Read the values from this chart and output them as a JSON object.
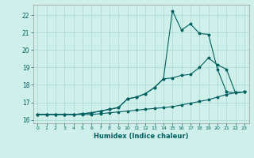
{
  "xlabel": "Humidex (Indice chaleur)",
  "bg_color": "#cff0ea",
  "grid_color": "#a8d8d0",
  "line_color": "#006060",
  "xlim": [
    -0.5,
    23.5
  ],
  "ylim": [
    15.8,
    22.6
  ],
  "yticks": [
    16,
    17,
    18,
    19,
    20,
    21,
    22
  ],
  "xticks": [
    0,
    1,
    2,
    3,
    4,
    5,
    6,
    7,
    8,
    9,
    10,
    11,
    12,
    13,
    14,
    15,
    16,
    17,
    18,
    19,
    20,
    21,
    22,
    23
  ],
  "series": [
    {
      "x": [
        0,
        1,
        2,
        3,
        4,
        5,
        6,
        7,
        8,
        9,
        10,
        11,
        12,
        13,
        14,
        15,
        16,
        17,
        18,
        19,
        20,
        21,
        22,
        23
      ],
      "y": [
        16.3,
        16.3,
        16.3,
        16.3,
        16.3,
        16.3,
        16.3,
        16.35,
        16.4,
        16.45,
        16.5,
        16.55,
        16.6,
        16.65,
        16.7,
        16.75,
        16.85,
        16.95,
        17.05,
        17.15,
        17.3,
        17.45,
        17.55,
        17.6
      ]
    },
    {
      "x": [
        0,
        1,
        2,
        3,
        4,
        5,
        6,
        7,
        8,
        9,
        10,
        11,
        12,
        13,
        14,
        15,
        16,
        17,
        18,
        19,
        20,
        21,
        22,
        23
      ],
      "y": [
        16.3,
        16.3,
        16.3,
        16.3,
        16.3,
        16.35,
        16.4,
        16.5,
        16.6,
        16.7,
        17.2,
        17.3,
        17.5,
        17.85,
        18.35,
        18.4,
        18.55,
        18.6,
        19.0,
        19.55,
        19.15,
        18.9,
        17.55,
        17.6
      ]
    },
    {
      "x": [
        0,
        1,
        2,
        3,
        4,
        5,
        6,
        7,
        8,
        9,
        10,
        11,
        12,
        13,
        14,
        15,
        16,
        17,
        18,
        19,
        20,
        21,
        22,
        23
      ],
      "y": [
        16.3,
        16.3,
        16.3,
        16.3,
        16.3,
        16.35,
        16.4,
        16.5,
        16.6,
        16.7,
        17.2,
        17.3,
        17.5,
        17.85,
        18.35,
        22.25,
        21.15,
        21.5,
        20.95,
        20.9,
        18.9,
        17.6,
        17.55,
        17.6
      ]
    }
  ]
}
